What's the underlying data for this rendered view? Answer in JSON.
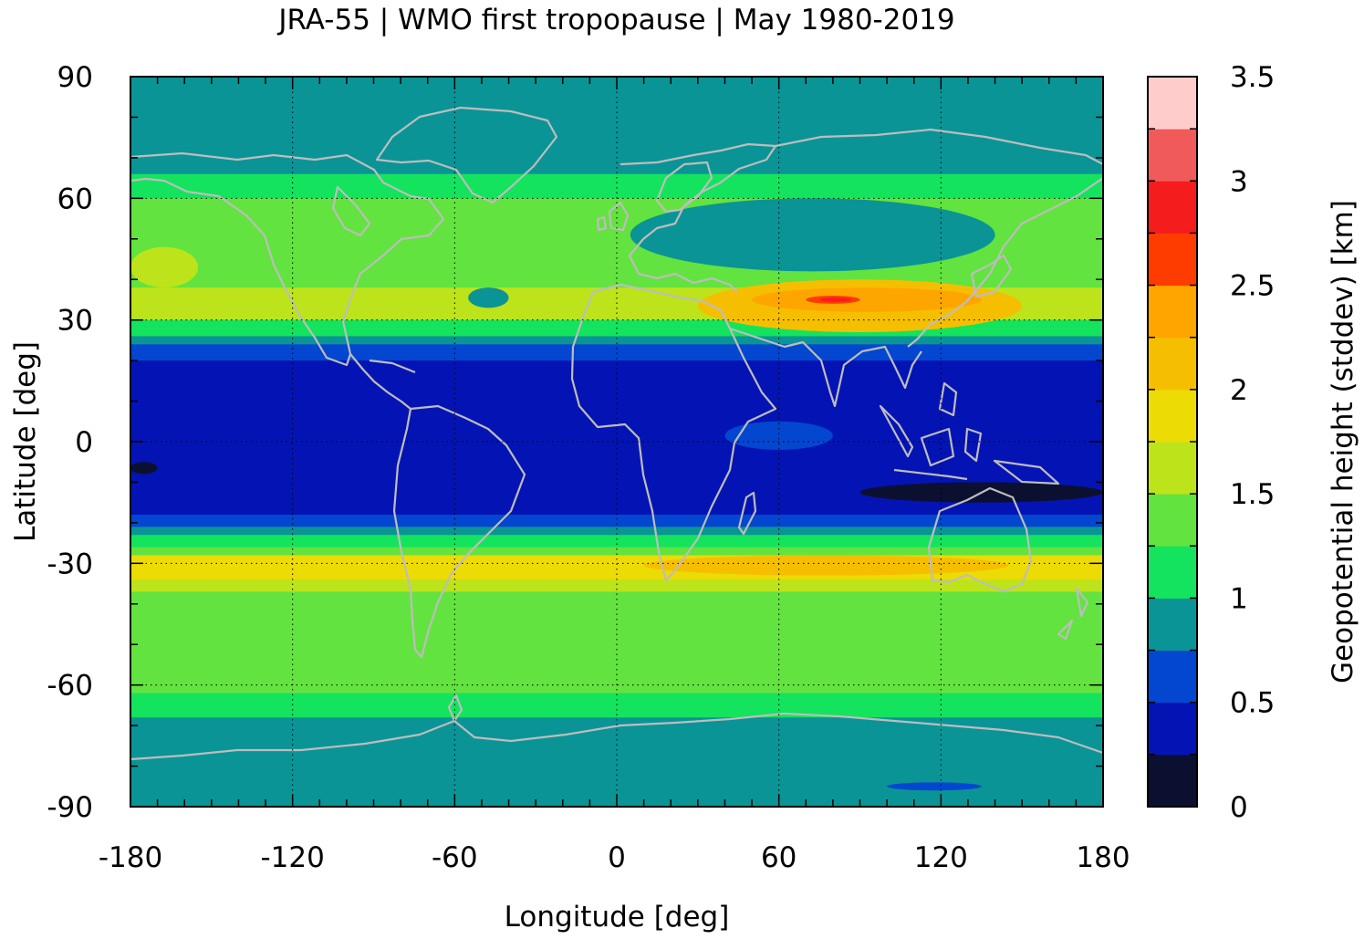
{
  "chart_data": {
    "type": "heatmap",
    "title": "JRA-55 | WMO first tropopause | May 1980-2019",
    "xlabel": "Longitude [deg]",
    "ylabel": "Latitude [deg]",
    "xlim": [
      -180,
      180
    ],
    "ylim": [
      -90,
      90
    ],
    "x_ticks": [
      "-180",
      "-120",
      "-60",
      "0",
      "60",
      "120",
      "180"
    ],
    "y_ticks": [
      "90",
      "60",
      "30",
      "0",
      "-30",
      "-60",
      "-90"
    ],
    "grid": true,
    "colorbar": {
      "label": "Geopotential height (stddev) [km]",
      "range": [
        0,
        3.5
      ],
      "ticks": [
        "0",
        "0.5",
        "1",
        "1.5",
        "2",
        "2.5",
        "3",
        "3.5"
      ],
      "levels": [
        {
          "from": 0.0,
          "to": 0.25,
          "color": "#0b1030"
        },
        {
          "from": 0.25,
          "to": 0.5,
          "color": "#0414b4"
        },
        {
          "from": 0.5,
          "to": 0.75,
          "color": "#0346d0"
        },
        {
          "from": 0.75,
          "to": 1.0,
          "color": "#0a9496"
        },
        {
          "from": 1.0,
          "to": 1.25,
          "color": "#14e35d"
        },
        {
          "from": 1.25,
          "to": 1.5,
          "color": "#62e33f"
        },
        {
          "from": 1.5,
          "to": 1.75,
          "color": "#bde31a"
        },
        {
          "from": 1.75,
          "to": 2.0,
          "color": "#ecdb05"
        },
        {
          "from": 2.0,
          "to": 2.25,
          "color": "#f5bf00"
        },
        {
          "from": 2.25,
          "to": 2.5,
          "color": "#ffa500"
        },
        {
          "from": 2.5,
          "to": 2.75,
          "color": "#ff3c00"
        },
        {
          "from": 2.75,
          "to": 3.0,
          "color": "#f41c1c"
        },
        {
          "from": 3.0,
          "to": 3.25,
          "color": "#f05a5a"
        },
        {
          "from": 3.25,
          "to": 3.5,
          "color": "#ffcccc"
        }
      ]
    },
    "zonal_bands": [
      {
        "lat_from": 90,
        "lat_to": 66,
        "value": 0.9
      },
      {
        "lat_from": 66,
        "lat_to": 60,
        "value": 1.1
      },
      {
        "lat_from": 60,
        "lat_to": 47,
        "value": 1.4
      },
      {
        "lat_from": 47,
        "lat_to": 38,
        "value": 1.4
      },
      {
        "lat_from": 38,
        "lat_to": 30,
        "value": 1.6
      },
      {
        "lat_from": 30,
        "lat_to": 26,
        "value": 1.1
      },
      {
        "lat_from": 26,
        "lat_to": 24,
        "value": 0.9
      },
      {
        "lat_from": 24,
        "lat_to": 20,
        "value": 0.6
      },
      {
        "lat_from": 20,
        "lat_to": -18,
        "value": 0.4
      },
      {
        "lat_from": -18,
        "lat_to": -21,
        "value": 0.6
      },
      {
        "lat_from": -21,
        "lat_to": -23,
        "value": 0.9
      },
      {
        "lat_from": -23,
        "lat_to": -26,
        "value": 1.1
      },
      {
        "lat_from": -26,
        "lat_to": -28,
        "value": 1.4
      },
      {
        "lat_from": -28,
        "lat_to": -34,
        "value": 1.9
      },
      {
        "lat_from": -34,
        "lat_to": -37,
        "value": 1.6
      },
      {
        "lat_from": -37,
        "lat_to": -40,
        "value": 1.4
      },
      {
        "lat_from": -40,
        "lat_to": -55,
        "value": 1.4
      },
      {
        "lat_from": -55,
        "lat_to": -62,
        "value": 1.4
      },
      {
        "lat_from": -62,
        "lat_to": -68,
        "value": 1.1
      },
      {
        "lat_from": -68,
        "lat_to": -90,
        "value": 0.9
      }
    ],
    "regional_features": [
      {
        "lon": [
          -180,
          -155
        ],
        "lat": [
          38,
          48
        ],
        "value": 1.6
      },
      {
        "lon": [
          -100,
          -20
        ],
        "lat": [
          45,
          60
        ],
        "value": 1.4
      },
      {
        "lon": [
          -55,
          -40
        ],
        "lat": [
          33,
          38
        ],
        "value": 0.9
      },
      {
        "lon": [
          5,
          140
        ],
        "lat": [
          42,
          60
        ],
        "value": 0.9
      },
      {
        "lon": [
          30,
          150
        ],
        "lat": [
          27,
          40
        ],
        "value": 2.0
      },
      {
        "lon": [
          50,
          135
        ],
        "lat": [
          32,
          38
        ],
        "value": 2.3
      },
      {
        "lon": [
          70,
          90
        ],
        "lat": [
          34,
          36
        ],
        "value": 2.6
      },
      {
        "lon": [
          75,
          87
        ],
        "lat": [
          34.5,
          35.5
        ],
        "value": 2.8
      },
      {
        "lon": [
          90,
          180
        ],
        "lat": [
          -15,
          -10
        ],
        "value": 0.2
      },
      {
        "lon": [
          -180,
          -170
        ],
        "lat": [
          -8,
          -5
        ],
        "value": 0.2
      },
      {
        "lon": [
          40,
          80
        ],
        "lat": [
          -2,
          5
        ],
        "value": 0.6
      },
      {
        "lon": [
          -180,
          -150
        ],
        "lat": [
          -34,
          -28
        ],
        "value": 1.8
      },
      {
        "lon": [
          10,
          145
        ],
        "lat": [
          -33,
          -28
        ],
        "value": 2.2
      },
      {
        "lon": [
          20,
          150
        ],
        "lat": [
          -47,
          -37
        ],
        "value": 1.4
      },
      {
        "lon": [
          100,
          135
        ],
        "lat": [
          -86,
          -84
        ],
        "value": 0.6
      }
    ]
  }
}
